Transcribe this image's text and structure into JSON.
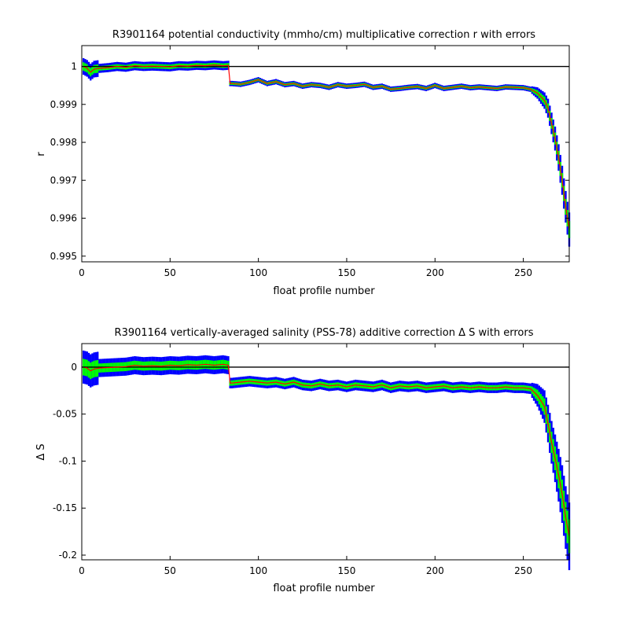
{
  "chart_data": [
    {
      "type": "line",
      "title": "R3901164 potential conductivity (mmho/cm) multiplicative correction r with errors",
      "xlabel": "float profile number",
      "ylabel": "r",
      "xlim": [
        0,
        276
      ],
      "ylim": [
        0.99485,
        1.00055
      ],
      "xticks": [
        0,
        50,
        100,
        150,
        200,
        250
      ],
      "yticks": [
        0.995,
        0.996,
        0.997,
        0.998,
        0.999,
        1
      ],
      "ytick_labels": [
        "0.995",
        "0.996",
        "0.997",
        "0.998",
        "0.999",
        "1"
      ],
      "reference_line": 1,
      "colors": {
        "series": "#ff0000",
        "error_2sigma": "#0000ff",
        "error_1sigma": "#00ff00",
        "reference": "#000000"
      },
      "series": [
        {
          "x": [
            1,
            3,
            5,
            7,
            10,
            15,
            20,
            25,
            30,
            35,
            40,
            45,
            50,
            55,
            60,
            65,
            70,
            75,
            80,
            83,
            84,
            85,
            90,
            95,
            100,
            105,
            110,
            115,
            120,
            125,
            130,
            135,
            140,
            145,
            150,
            155,
            160,
            165,
            170,
            175,
            180,
            185,
            190,
            195,
            200,
            205,
            210,
            215,
            220,
            225,
            230,
            235,
            240,
            245,
            250,
            254,
            258,
            262,
            264,
            266,
            268,
            270,
            272,
            274,
            276
          ],
          "y": [
            1.0,
            0.99995,
            0.99985,
            0.99993,
            0.99995,
            0.99997,
            1.0,
            0.99998,
            1.00002,
            1.0,
            1.00001,
            1.0,
            0.99999,
            1.00002,
            1.00001,
            1.00003,
            1.00002,
            1.00004,
            1.00002,
            1.00003,
            0.99955,
            0.99955,
            0.99953,
            0.99958,
            0.99965,
            0.99955,
            0.9996,
            0.99952,
            0.99955,
            0.99948,
            0.99952,
            0.9995,
            0.99945,
            0.99952,
            0.99948,
            0.9995,
            0.99953,
            0.99945,
            0.99948,
            0.9994,
            0.99942,
            0.99945,
            0.99947,
            0.99942,
            0.9995,
            0.99942,
            0.99945,
            0.99948,
            0.99944,
            0.99946,
            0.99944,
            0.99942,
            0.99946,
            0.99945,
            0.99944,
            0.9994,
            0.9993,
            0.9991,
            0.9989,
            0.9985,
            0.9981,
            0.9976,
            0.997,
            0.9963,
            0.9957
          ]
        }
      ]
    },
    {
      "type": "line",
      "title": "R3901164 vertically-averaged salinity (PSS-78) additive correction Δ S with errors",
      "xlabel": "float profile number",
      "ylabel": "Δ S",
      "xlim": [
        0,
        276
      ],
      "ylim": [
        -0.205,
        0.025
      ],
      "xticks": [
        0,
        50,
        100,
        150,
        200,
        250
      ],
      "yticks": [
        -0.2,
        -0.15,
        -0.1,
        -0.05,
        0
      ],
      "ytick_labels": [
        "-0.2",
        "-0.15",
        "-0.1",
        "-0.05",
        "0"
      ],
      "reference_line": 0,
      "colors": {
        "series": "#ff0000",
        "error_2sigma": "#0000ff",
        "error_1sigma": "#00ff00",
        "reference": "#000000"
      },
      "series": [
        {
          "x": [
            1,
            3,
            5,
            7,
            10,
            15,
            20,
            25,
            30,
            35,
            40,
            45,
            50,
            55,
            60,
            65,
            70,
            75,
            80,
            83,
            84,
            85,
            90,
            95,
            100,
            105,
            110,
            115,
            120,
            125,
            130,
            135,
            140,
            145,
            150,
            155,
            160,
            165,
            170,
            175,
            180,
            185,
            190,
            195,
            200,
            205,
            210,
            215,
            220,
            225,
            230,
            235,
            240,
            245,
            250,
            254,
            258,
            262,
            264,
            266,
            268,
            270,
            272,
            274,
            276
          ],
          "y": [
            0.0,
            -0.001,
            -0.004,
            -0.002,
            -0.001,
            -0.0005,
            0.0,
            0.0005,
            0.002,
            0.001,
            0.0015,
            0.001,
            0.002,
            0.0015,
            0.0025,
            0.002,
            0.003,
            0.002,
            0.003,
            0.002,
            -0.017,
            -0.017,
            -0.016,
            -0.015,
            -0.016,
            -0.017,
            -0.016,
            -0.018,
            -0.016,
            -0.019,
            -0.02,
            -0.018,
            -0.02,
            -0.019,
            -0.021,
            -0.019,
            -0.02,
            -0.021,
            -0.019,
            -0.022,
            -0.02,
            -0.021,
            -0.02,
            -0.022,
            -0.021,
            -0.02,
            -0.022,
            -0.021,
            -0.022,
            -0.021,
            -0.022,
            -0.022,
            -0.021,
            -0.022,
            -0.022,
            -0.023,
            -0.03,
            -0.042,
            -0.06,
            -0.08,
            -0.097,
            -0.115,
            -0.135,
            -0.16,
            -0.18
          ]
        }
      ]
    }
  ]
}
